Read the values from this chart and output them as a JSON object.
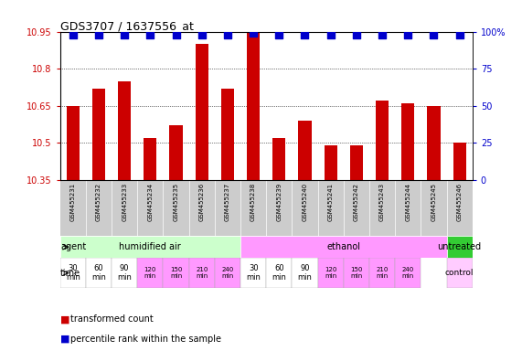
{
  "title": "GDS3707 / 1637556_at",
  "samples": [
    "GSM455231",
    "GSM455232",
    "GSM455233",
    "GSM455234",
    "GSM455235",
    "GSM455236",
    "GSM455237",
    "GSM455238",
    "GSM455239",
    "GSM455240",
    "GSM455241",
    "GSM455242",
    "GSM455243",
    "GSM455244",
    "GSM455245",
    "GSM455246"
  ],
  "bar_values": [
    10.65,
    10.72,
    10.75,
    10.52,
    10.57,
    10.9,
    10.72,
    10.95,
    10.52,
    10.59,
    10.49,
    10.49,
    10.67,
    10.66,
    10.65,
    10.5
  ],
  "percentile_values": [
    98,
    98,
    98,
    98,
    98,
    98,
    98,
    99,
    98,
    98,
    98,
    98,
    98,
    98,
    98,
    98
  ],
  "ylim_left": [
    10.35,
    10.95
  ],
  "yticks_left": [
    10.35,
    10.5,
    10.65,
    10.8,
    10.95
  ],
  "ytick_labels_left": [
    "10.35",
    "10.5",
    "10.65",
    "10.8",
    "10.95"
  ],
  "ylim_right": [
    0,
    100
  ],
  "yticks_right": [
    0,
    25,
    50,
    75,
    100
  ],
  "ytick_labels_right": [
    "0",
    "25",
    "50",
    "75",
    "100%"
  ],
  "bar_color": "#cc0000",
  "dot_color": "#0000cc",
  "agent_groups": [
    {
      "label": "humidified air",
      "start": 0,
      "end": 7,
      "color": "#ccffcc"
    },
    {
      "label": "ethanol",
      "start": 7,
      "end": 15,
      "color": "#ff99ff"
    },
    {
      "label": "untreated",
      "start": 15,
      "end": 16,
      "color": "#33cc33"
    }
  ],
  "time_labels_14": [
    "30\nmin",
    "60\nmin",
    "90\nmin",
    "120\nmin",
    "150\nmin",
    "210\nmin",
    "240\nmin",
    "30\nmin",
    "60\nmin",
    "90\nmin",
    "120\nmin",
    "150\nmin",
    "210\nmin",
    "240\nmin"
  ],
  "time_colors_14": [
    "#ffffff",
    "#ffffff",
    "#ffffff",
    "#ff99ff",
    "#ff99ff",
    "#ff99ff",
    "#ff99ff",
    "#ffffff",
    "#ffffff",
    "#ffffff",
    "#ff99ff",
    "#ff99ff",
    "#ff99ff",
    "#ff99ff"
  ],
  "legend_items": [
    {
      "color": "#cc0000",
      "label": "transformed count"
    },
    {
      "color": "#0000cc",
      "label": "percentile rank within the sample"
    }
  ],
  "bar_width": 0.5,
  "dot_size": 30,
  "dot_marker": "s",
  "bar_color_red": "#cc0000",
  "dot_color_blue": "#0000cc",
  "label_bg": "#cccccc",
  "control_bg": "#ffccff",
  "fig_bg": "#ffffff"
}
